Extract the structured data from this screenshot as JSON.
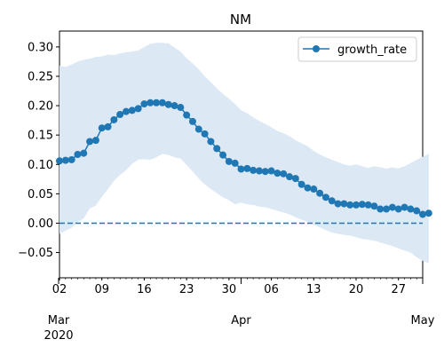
{
  "chart_data": {
    "type": "line",
    "title": "NM",
    "xlabel": "",
    "ylabel": "",
    "x_start": "2020-03-02",
    "x_end": "2020-05-01",
    "ylim": [
      -0.093,
      0.327
    ],
    "y_ticks": [
      -0.05,
      0.0,
      0.05,
      0.1,
      0.15,
      0.2,
      0.25,
      0.3
    ],
    "y_tick_labels": [
      "−0.05",
      "0.00",
      "0.05",
      "0.10",
      "0.15",
      "0.20",
      "0.25",
      "0.30"
    ],
    "x_minor_ticks": [
      {
        "date": "2020-03-02",
        "label": "02"
      },
      {
        "date": "2020-03-09",
        "label": "09"
      },
      {
        "date": "2020-03-16",
        "label": "16"
      },
      {
        "date": "2020-03-23",
        "label": "23"
      },
      {
        "date": "2020-03-30",
        "label": "30"
      },
      {
        "date": "2020-04-06",
        "label": "06"
      },
      {
        "date": "2020-04-13",
        "label": "13"
      },
      {
        "date": "2020-04-20",
        "label": "20"
      },
      {
        "date": "2020-04-27",
        "label": "27"
      }
    ],
    "x_major_ticks": [
      {
        "date": "2020-03-01",
        "label": "Mar",
        "sublabel": "2020"
      },
      {
        "date": "2020-04-01",
        "label": "Apr",
        "sublabel": ""
      },
      {
        "date": "2020-05-01",
        "label": "May",
        "sublabel": ""
      }
    ],
    "reference_line": {
      "y": 0.0,
      "style": "dashed",
      "color": "#1f77b4"
    },
    "legend": {
      "position": "top-right",
      "entries": [
        "growth_rate"
      ]
    },
    "colors": {
      "line": "#1f77b4",
      "band": "#dce9f5"
    },
    "series": [
      {
        "name": "growth_rate",
        "start_date": "2020-03-02",
        "values": [
          0.106,
          0.107,
          0.108,
          0.117,
          0.119,
          0.139,
          0.141,
          0.162,
          0.164,
          0.176,
          0.185,
          0.19,
          0.192,
          0.195,
          0.203,
          0.205,
          0.205,
          0.205,
          0.202,
          0.2,
          0.197,
          0.184,
          0.173,
          0.16,
          0.152,
          0.139,
          0.127,
          0.116,
          0.105,
          0.102,
          0.092,
          0.093,
          0.09,
          0.089,
          0.088,
          0.089,
          0.085,
          0.084,
          0.079,
          0.076,
          0.066,
          0.06,
          0.058,
          0.051,
          0.044,
          0.038,
          0.033,
          0.033,
          0.031,
          0.031,
          0.032,
          0.031,
          0.029,
          0.024,
          0.024,
          0.027,
          0.024,
          0.027,
          0.024,
          0.021,
          0.015,
          0.017
        ],
        "lower": [
          -0.018,
          -0.013,
          -0.008,
          0.002,
          0.008,
          0.025,
          0.03,
          0.045,
          0.058,
          0.072,
          0.082,
          0.09,
          0.101,
          0.108,
          0.109,
          0.108,
          0.112,
          0.118,
          0.116,
          0.112,
          0.11,
          0.099,
          0.088,
          0.076,
          0.066,
          0.058,
          0.051,
          0.044,
          0.039,
          0.032,
          0.035,
          0.032,
          0.031,
          0.028,
          0.027,
          0.024,
          0.021,
          0.018,
          0.015,
          0.01,
          0.006,
          0.002,
          -0.003,
          -0.007,
          -0.012,
          -0.016,
          -0.018,
          -0.02,
          -0.021,
          -0.024,
          -0.027,
          -0.028,
          -0.03,
          -0.033,
          -0.036,
          -0.039,
          -0.043,
          -0.047,
          -0.05,
          -0.058,
          -0.064,
          -0.068
        ],
        "upper": [
          0.268,
          0.266,
          0.27,
          0.275,
          0.278,
          0.28,
          0.283,
          0.284,
          0.287,
          0.286,
          0.289,
          0.291,
          0.292,
          0.294,
          0.3,
          0.305,
          0.307,
          0.307,
          0.306,
          0.299,
          0.292,
          0.281,
          0.272,
          0.262,
          0.25,
          0.24,
          0.23,
          0.22,
          0.212,
          0.203,
          0.192,
          0.187,
          0.18,
          0.174,
          0.169,
          0.163,
          0.157,
          0.153,
          0.148,
          0.141,
          0.136,
          0.131,
          0.123,
          0.117,
          0.112,
          0.108,
          0.104,
          0.1,
          0.098,
          0.1,
          0.097,
          0.094,
          0.097,
          0.095,
          0.093,
          0.095,
          0.093,
          0.097,
          0.102,
          0.108,
          0.113,
          0.118
        ]
      }
    ]
  }
}
